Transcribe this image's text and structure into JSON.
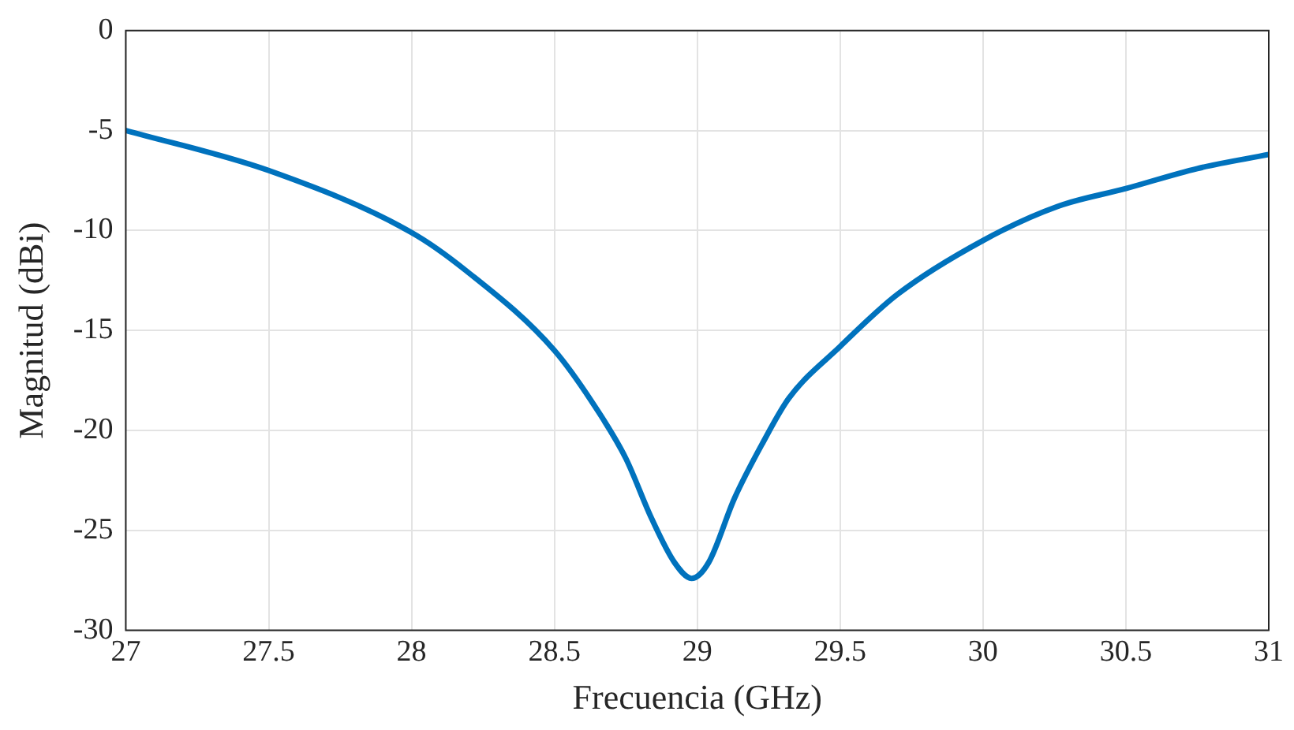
{
  "chart_data": {
    "type": "line",
    "xlabel": "Frecuencia (GHz)",
    "ylabel": "Magnitud (dBi)",
    "x": [
      27,
      27.5,
      28,
      28.19,
      28.5,
      28.66,
      28.75,
      28.84,
      28.92,
      28.98,
      29.04,
      29.13,
      29.23,
      29.32,
      29.5,
      29.7,
      30,
      30.26,
      30.5,
      30.75,
      31
    ],
    "series": [
      {
        "color": "#0072bd",
        "values": [
          -5,
          -7,
          -10.1,
          -12,
          -16,
          -19.2,
          -21.4,
          -24.4,
          -26.6,
          -27.4,
          -26.6,
          -23.4,
          -20.6,
          -18.4,
          -15.8,
          -13.2,
          -10.5,
          -8.8,
          -7.9,
          -6.9,
          -6.2
        ]
      }
    ],
    "xlim": [
      27,
      31
    ],
    "xticks": [
      27,
      27.5,
      28,
      28.5,
      29,
      29.5,
      30,
      30.5,
      31
    ],
    "ylim": [
      -30,
      0
    ],
    "yticks": [
      -30,
      -25,
      -20,
      -15,
      -10,
      -5,
      0
    ],
    "grid": true,
    "legend": false,
    "marker": "none",
    "line_style": "solid"
  }
}
